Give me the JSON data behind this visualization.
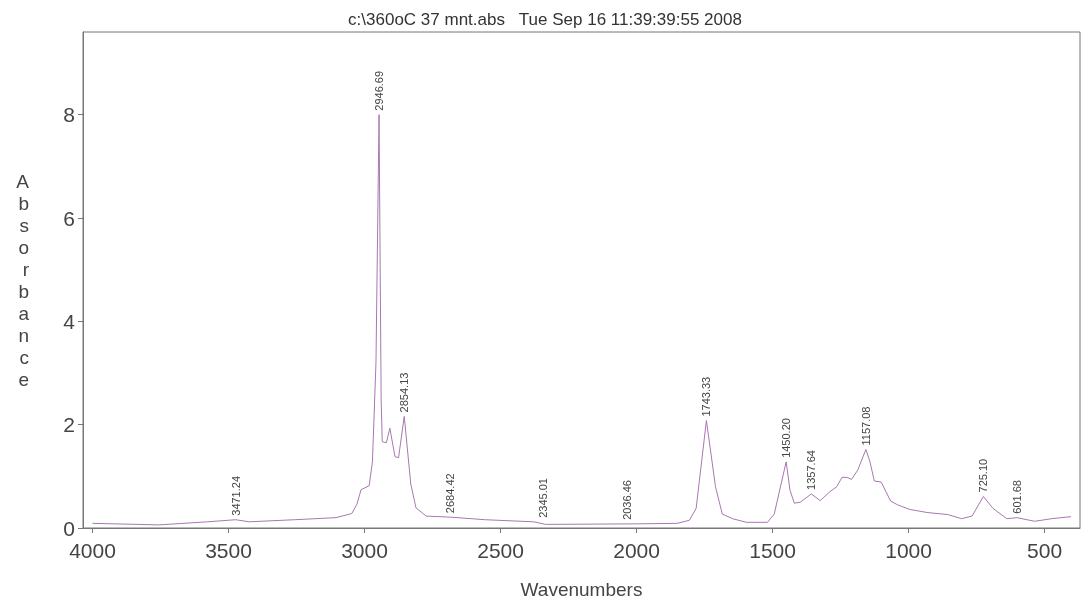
{
  "chart_data": {
    "type": "line",
    "title": "c:\\360oC 37 mnt.abs   Tue Sep 16 11:39:39:55 2008",
    "xlabel": "Wavenumbers",
    "ylabel": "Absorbance",
    "x": [
      4000,
      3755,
      3577,
      3474,
      3424,
      3258,
      3105,
      3047,
      3028,
      3013,
      2983,
      2971,
      2958,
      2946.69,
      2939,
      2935,
      2920,
      2907,
      2888,
      2875,
      2854.13,
      2847,
      2830,
      2811,
      2773,
      2684,
      2556,
      2378,
      2335,
      2000,
      1851,
      1806,
      1781,
      1743.33,
      1710,
      1685,
      1647,
      1596,
      1519,
      1494,
      1450.2,
      1436,
      1420,
      1398,
      1357.64,
      1325,
      1290,
      1264,
      1245,
      1226,
      1210,
      1187,
      1157.08,
      1143,
      1126,
      1101,
      1066,
      1041,
      996,
      932,
      856,
      805,
      767,
      725.1,
      690,
      639,
      601.68,
      537,
      474,
      403
    ],
    "series": [
      {
        "color": "#a878b0",
        "values": [
          0.09,
          0.06,
          0.12,
          0.16,
          0.12,
          0.16,
          0.2,
          0.28,
          0.46,
          0.74,
          0.82,
          1.28,
          3.2,
          8.0,
          2.5,
          1.67,
          1.65,
          1.93,
          1.38,
          1.36,
          2.16,
          1.77,
          0.85,
          0.39,
          0.23,
          0.21,
          0.16,
          0.12,
          0.07,
          0.08,
          0.09,
          0.15,
          0.38,
          2.08,
          0.8,
          0.27,
          0.18,
          0.11,
          0.11,
          0.27,
          1.28,
          0.73,
          0.48,
          0.5,
          0.66,
          0.53,
          0.7,
          0.8,
          0.98,
          0.98,
          0.94,
          1.12,
          1.52,
          1.3,
          0.91,
          0.89,
          0.52,
          0.45,
          0.36,
          0.3,
          0.26,
          0.18,
          0.23,
          0.61,
          0.38,
          0.18,
          0.2,
          0.13,
          0.18,
          0.22
        ]
      }
    ],
    "xlim": [
      4035,
      370
    ],
    "xticks": [
      4000,
      3500,
      3000,
      2500,
      2000,
      1500,
      1000,
      500
    ],
    "ylim": [
      0,
      9.6
    ],
    "yticks": [
      0,
      2,
      4,
      6,
      8
    ],
    "grid": false,
    "marker": "none",
    "line_style": "solid",
    "annotations": [
      {
        "text": "3471.24",
        "x": 3471.24,
        "y": 0.16
      },
      {
        "text": "2946.69",
        "x": 2946.69,
        "y": 8.0
      },
      {
        "text": "2854.13",
        "x": 2854.13,
        "y": 2.16
      },
      {
        "text": "2684.42",
        "x": 2684.42,
        "y": 0.21
      },
      {
        "text": "2345.01",
        "x": 2345.01,
        "y": 0.12
      },
      {
        "text": "2036.46",
        "x": 2036.46,
        "y": 0.08
      },
      {
        "text": "1743.33",
        "x": 1743.33,
        "y": 2.08
      },
      {
        "text": "1450.20",
        "x": 1450.2,
        "y": 1.28
      },
      {
        "text": "1357.64",
        "x": 1357.64,
        "y": 0.66
      },
      {
        "text": "1157.08",
        "x": 1157.08,
        "y": 1.52
      },
      {
        "text": "725.10",
        "x": 725.1,
        "y": 0.61
      },
      {
        "text": "601.68",
        "x": 601.68,
        "y": 0.2
      }
    ]
  }
}
